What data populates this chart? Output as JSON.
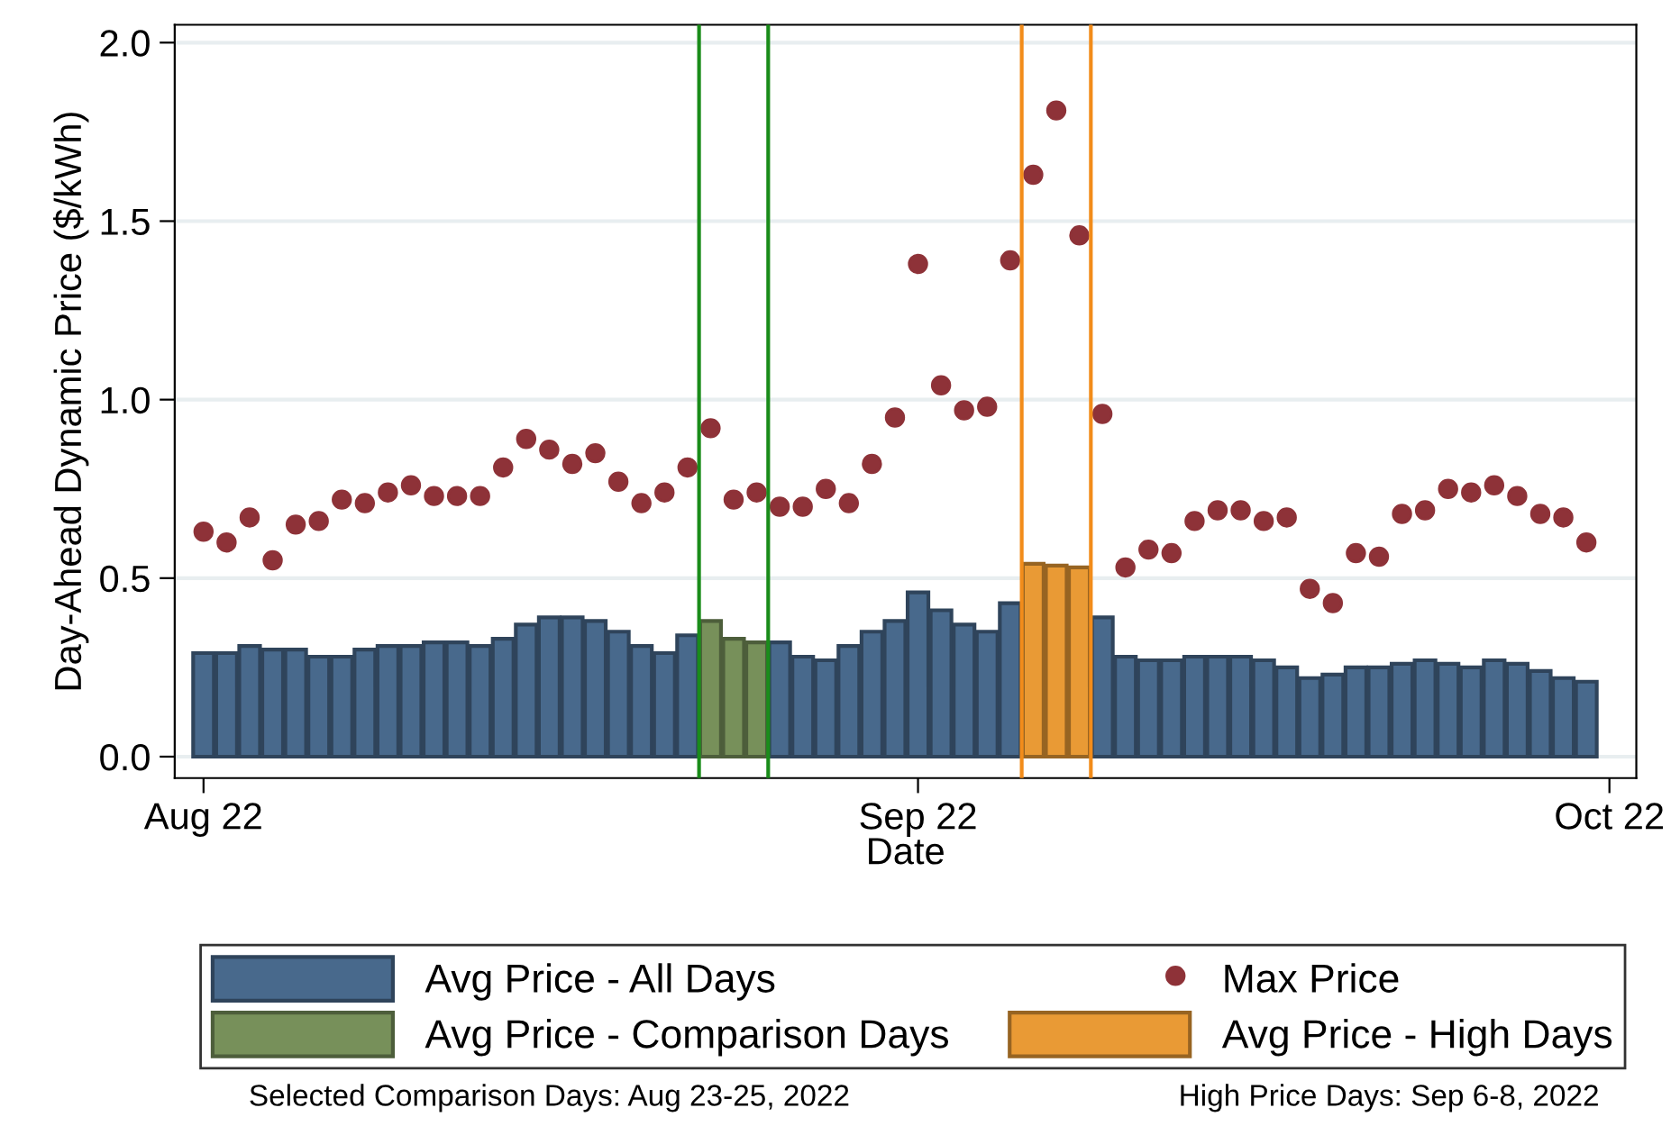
{
  "chart_data": {
    "type": "bar",
    "xlabel": "Date",
    "ylabel": "Day-Ahead Dynamic Price ($/kWh)",
    "xlim": [
      "2022-07-30T18:00",
      "2022-10-02T04:00"
    ],
    "xticks": [
      {
        "value": "2022-08-01",
        "label": "Aug 22"
      },
      {
        "value": "2022-09-01",
        "label": "Sep 22"
      },
      {
        "value": "2022-10-01",
        "label": "Oct 22"
      }
    ],
    "ylim": [
      -0.06,
      2.05
    ],
    "yticks": [
      {
        "value": 0,
        "label": "0.0"
      },
      {
        "value": 0.5,
        "label": "0.5"
      },
      {
        "value": 1.0,
        "label": "1.0"
      },
      {
        "value": 1.5,
        "label": "1.5"
      },
      {
        "value": 2.0,
        "label": "2.0"
      }
    ],
    "grid": "y",
    "legend": "bottom",
    "x": [
      "2022-08-01",
      "2022-08-02",
      "2022-08-03",
      "2022-08-04",
      "2022-08-05",
      "2022-08-06",
      "2022-08-07",
      "2022-08-08",
      "2022-08-09",
      "2022-08-10",
      "2022-08-11",
      "2022-08-12",
      "2022-08-13",
      "2022-08-14",
      "2022-08-15",
      "2022-08-16",
      "2022-08-17",
      "2022-08-18",
      "2022-08-19",
      "2022-08-20",
      "2022-08-21",
      "2022-08-22",
      "2022-08-23",
      "2022-08-24",
      "2022-08-25",
      "2022-08-26",
      "2022-08-27",
      "2022-08-28",
      "2022-08-29",
      "2022-08-30",
      "2022-08-31",
      "2022-09-01",
      "2022-09-02",
      "2022-09-03",
      "2022-09-04",
      "2022-09-05",
      "2022-09-06",
      "2022-09-07",
      "2022-09-08",
      "2022-09-09",
      "2022-09-10",
      "2022-09-11",
      "2022-09-12",
      "2022-09-13",
      "2022-09-14",
      "2022-09-15",
      "2022-09-16",
      "2022-09-17",
      "2022-09-18",
      "2022-09-19",
      "2022-09-20",
      "2022-09-21",
      "2022-09-22",
      "2022-09-23",
      "2022-09-24",
      "2022-09-25",
      "2022-09-26",
      "2022-09-27",
      "2022-09-28",
      "2022-09-29",
      "2022-09-30"
    ],
    "series": [
      {
        "name": "Avg Price - All Days",
        "color": "#48698c",
        "values": [
          0.29,
          0.29,
          0.31,
          0.3,
          0.3,
          0.28,
          0.28,
          0.3,
          0.31,
          0.31,
          0.32,
          0.32,
          0.31,
          0.33,
          0.37,
          0.39,
          0.39,
          0.38,
          0.35,
          0.31,
          0.29,
          0.34,
          null,
          null,
          null,
          0.32,
          0.28,
          0.27,
          0.31,
          0.35,
          0.38,
          0.46,
          0.41,
          0.37,
          0.35,
          0.43,
          null,
          null,
          null,
          0.39,
          0.28,
          0.27,
          0.27,
          0.28,
          0.28,
          0.28,
          0.27,
          0.25,
          0.22,
          0.23,
          0.25,
          0.25,
          0.26,
          0.27,
          0.26,
          0.25,
          0.27,
          0.26,
          0.24,
          0.22,
          0.21
        ]
      },
      {
        "name": "Max Price",
        "type": "scatter",
        "marker": "circle",
        "color": "#8e3238",
        "values": [
          0.63,
          0.6,
          0.67,
          0.55,
          0.65,
          0.66,
          0.72,
          0.71,
          0.74,
          0.76,
          0.73,
          0.73,
          0.73,
          0.81,
          0.89,
          0.86,
          0.82,
          0.85,
          0.77,
          0.71,
          0.74,
          0.81,
          0.92,
          0.72,
          0.74,
          0.7,
          0.7,
          0.75,
          0.71,
          0.82,
          0.95,
          1.38,
          1.04,
          0.97,
          0.98,
          1.39,
          1.63,
          1.81,
          1.46,
          0.96,
          0.53,
          0.58,
          0.57,
          0.66,
          0.69,
          0.69,
          0.66,
          0.67,
          0.47,
          0.43,
          0.57,
          0.56,
          0.68,
          0.69,
          0.75,
          0.74,
          0.76,
          0.73,
          0.68,
          0.67,
          0.6
        ]
      },
      {
        "name": "Avg Price - Comparison Days",
        "type": "bar",
        "color": "#77905a",
        "x": [
          "2022-08-23",
          "2022-08-24",
          "2022-08-25"
        ],
        "values": [
          0.38,
          0.33,
          0.32
        ]
      },
      {
        "name": "Avg Price - High Days",
        "type": "bar",
        "color": "#e99a35",
        "x": [
          "2022-09-06",
          "2022-09-07",
          "2022-09-08"
        ],
        "values": [
          0.54,
          0.535,
          0.53
        ]
      }
    ],
    "ref_lines": [
      {
        "axis": "x",
        "value": "2022-08-22T12:00",
        "color": "#1a8c1a"
      },
      {
        "axis": "x",
        "value": "2022-08-25T12:00",
        "color": "#1a8c1a"
      },
      {
        "axis": "x",
        "value": "2022-09-05T12:00",
        "color": "#f28c1a"
      },
      {
        "axis": "x",
        "value": "2022-09-08T12:00",
        "color": "#f28c1a"
      }
    ],
    "annotations": [
      "Selected Comparison Days: Aug 23-25, 2022",
      "High Price Days: Sep 6-8, 2022"
    ]
  }
}
